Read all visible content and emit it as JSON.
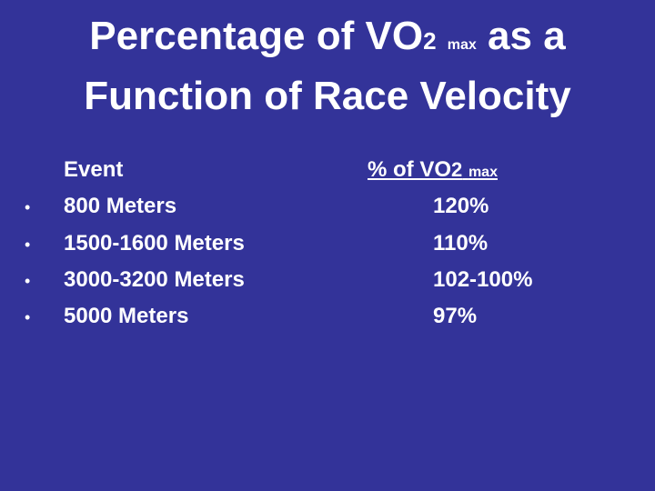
{
  "slide": {
    "title": {
      "line1_prefix": "Percentage of VO",
      "line1_sub": "2",
      "line1_tiny": "max",
      "line1_suffix": "as a",
      "line2": "Function of Race Velocity"
    },
    "table": {
      "event_header": "Event",
      "pct_header_prefix": "% of VO",
      "pct_header_sub": "2",
      "pct_header_tiny": "max",
      "bullet_glyph": "•",
      "rows": [
        {
          "event": "800 Meters",
          "pct": "120%"
        },
        {
          "event": "1500-1600 Meters",
          "pct": "110%"
        },
        {
          "event": "3000-3200 Meters",
          "pct": "102-100%"
        },
        {
          "event": "5000 Meters",
          "pct": "97%"
        }
      ]
    }
  }
}
